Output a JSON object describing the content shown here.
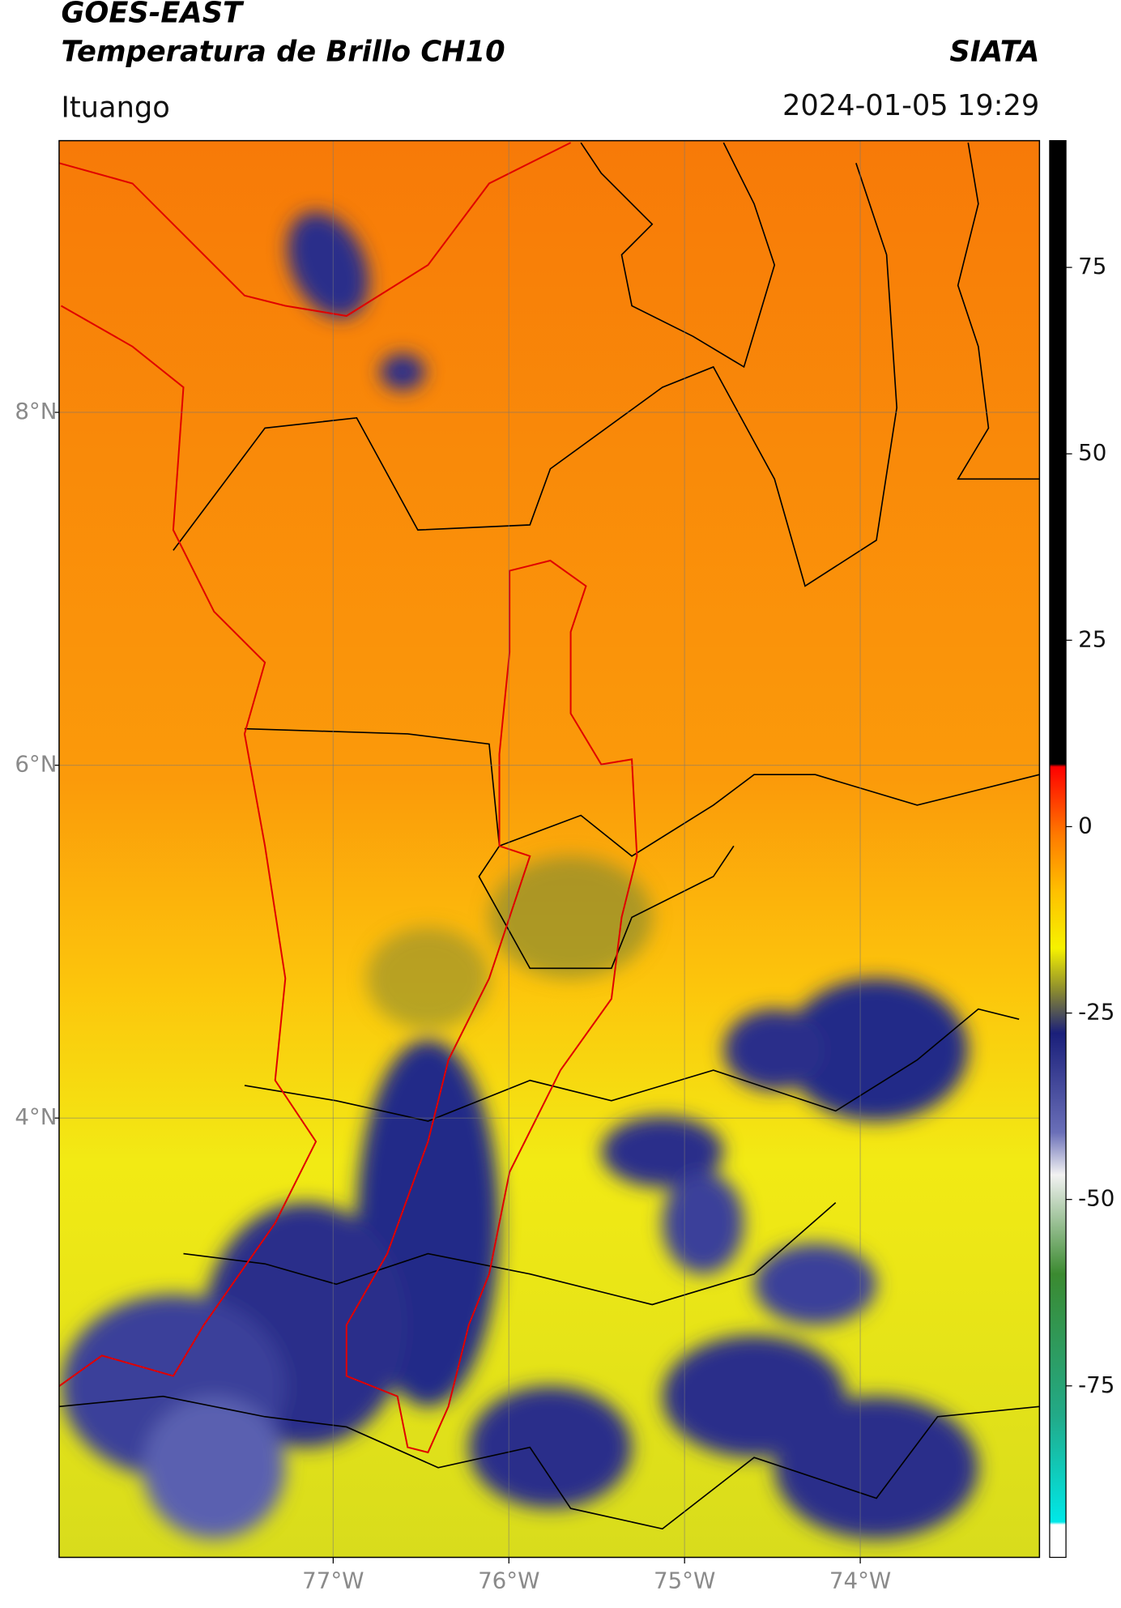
{
  "header": {
    "satellite": "GOES-EAST",
    "product": "Temperatura de Brillo CH10",
    "source": "SIATA",
    "region": "Ituango",
    "datetime": "2024-01-05 19:29"
  },
  "map": {
    "lonlim": [
      -78.56,
      -72.98
    ],
    "latlim": [
      1.51,
      9.54
    ],
    "lon_ticks": [
      {
        "value": -77,
        "label": "77°W"
      },
      {
        "value": -76,
        "label": "76°W"
      },
      {
        "value": -75,
        "label": "75°W"
      },
      {
        "value": -74,
        "label": "74°W"
      }
    ],
    "lat_ticks": [
      {
        "value": 8,
        "label": "8°N"
      },
      {
        "value": 6,
        "label": "6°N"
      },
      {
        "value": 4,
        "label": "4°N"
      }
    ]
  },
  "colorbar": {
    "lim": [
      -98,
      92
    ],
    "ticks": [
      75,
      50,
      25,
      0,
      -25,
      -50,
      -75
    ]
  }
}
